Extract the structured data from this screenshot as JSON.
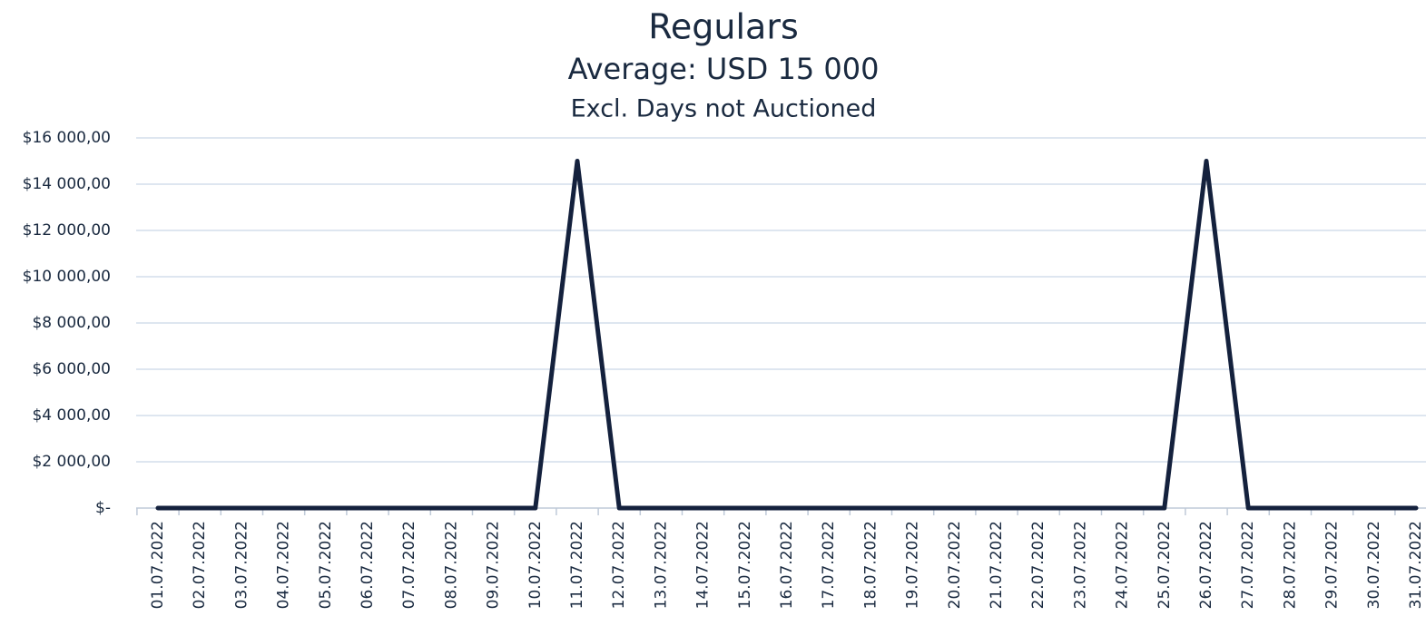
{
  "chart_data": {
    "type": "line",
    "title": "Regulars",
    "subtitle": "Average: USD 15 000",
    "subtitle2": "Excl. Days not Auctioned",
    "categories": [
      "01.07.2022",
      "02.07.2022",
      "03.07.2022",
      "04.07.2022",
      "05.07.2022",
      "06.07.2022",
      "07.07.2022",
      "08.07.2022",
      "09.07.2022",
      "10.07.2022",
      "11.07.2022",
      "12.07.2022",
      "13.07.2022",
      "14.07.2022",
      "15.07.2022",
      "16.07.2022",
      "17.07.2022",
      "18.07.2022",
      "19.07.2022",
      "20.07.2022",
      "21.07.2022",
      "22.07.2022",
      "23.07.2022",
      "24.07.2022",
      "25.07.2022",
      "26.07.2022",
      "27.07.2022",
      "28.07.2022",
      "29.07.2022",
      "30.07.2022",
      "31.07.2022"
    ],
    "values": [
      0,
      0,
      0,
      0,
      0,
      0,
      0,
      0,
      0,
      0,
      15000,
      0,
      0,
      0,
      0,
      0,
      0,
      0,
      0,
      0,
      0,
      0,
      0,
      0,
      0,
      15000,
      0,
      0,
      0,
      0,
      0
    ],
    "color": "#14213d",
    "ylim": [
      0,
      16000
    ],
    "yticks": [
      {
        "value": 0,
        "label": "$-"
      },
      {
        "value": 2000,
        "label": "$2 000,00"
      },
      {
        "value": 4000,
        "label": "$4 000,00"
      },
      {
        "value": 6000,
        "label": "$6 000,00"
      },
      {
        "value": 8000,
        "label": "$8 000,00"
      },
      {
        "value": 10000,
        "label": "$10 000,00"
      },
      {
        "value": 12000,
        "label": "$12 000,00"
      },
      {
        "value": 14000,
        "label": "$14 000,00"
      },
      {
        "value": 16000,
        "label": "$16 000,00"
      }
    ],
    "grid": true
  }
}
